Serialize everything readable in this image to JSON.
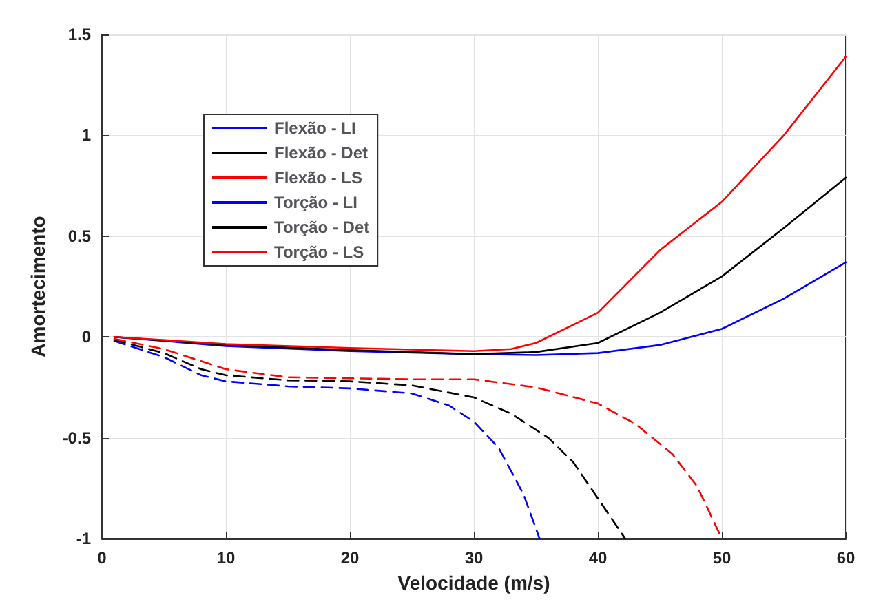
{
  "chart_data": {
    "type": "line",
    "xlabel": "Velocidade (m/s)",
    "ylabel": "Amortecimento",
    "xlim": [
      0,
      60
    ],
    "xticks": [
      0,
      10,
      20,
      30,
      40,
      50,
      60
    ],
    "ylim": [
      -1,
      1.5
    ],
    "yticks": [
      -1,
      -0.5,
      0,
      0.5,
      1,
      1.5
    ],
    "grid": true,
    "legend": "top left",
    "series": [
      {
        "name": "Flexão - LI",
        "color": "#0000ff",
        "line_style": "dashed",
        "x": [
          1,
          5,
          8,
          10,
          15,
          20,
          25,
          28,
          30,
          32,
          34,
          35.3
        ],
        "values": [
          -0.02,
          -0.1,
          -0.19,
          -0.22,
          -0.245,
          -0.255,
          -0.28,
          -0.34,
          -0.42,
          -0.55,
          -0.78,
          -1
        ]
      },
      {
        "name": "Flexão - Det",
        "color": "#000000",
        "line_style": "dashed",
        "x": [
          1,
          5,
          8,
          10,
          15,
          20,
          25,
          30,
          33,
          36,
          38,
          40,
          42.2
        ],
        "values": [
          -0.015,
          -0.08,
          -0.16,
          -0.19,
          -0.215,
          -0.22,
          -0.24,
          -0.3,
          -0.38,
          -0.5,
          -0.62,
          -0.8,
          -1
        ]
      },
      {
        "name": "Flexão - LS",
        "color": "#ff0000",
        "line_style": "dashed",
        "x": [
          1,
          5,
          10,
          15,
          20,
          25,
          30,
          35,
          40,
          43,
          46,
          48,
          50
        ],
        "values": [
          -0.01,
          -0.06,
          -0.16,
          -0.2,
          -0.205,
          -0.21,
          -0.21,
          -0.25,
          -0.33,
          -0.43,
          -0.58,
          -0.74,
          -1
        ]
      },
      {
        "name": "Torção - LI",
        "color": "#0000ff",
        "line_style": "solid",
        "x": [
          1,
          10,
          20,
          30,
          35,
          40,
          45,
          50,
          55,
          60
        ],
        "values": [
          0,
          -0.045,
          -0.07,
          -0.085,
          -0.09,
          -0.08,
          -0.04,
          0.04,
          0.19,
          0.37
        ]
      },
      {
        "name": "Torção - Det",
        "color": "#000000",
        "line_style": "solid",
        "x": [
          1,
          10,
          20,
          30,
          35,
          40,
          45,
          50,
          55,
          60
        ],
        "values": [
          0,
          -0.04,
          -0.065,
          -0.085,
          -0.075,
          -0.03,
          0.12,
          0.3,
          0.54,
          0.79
        ]
      },
      {
        "name": "Torção - LS",
        "color": "#ff0000",
        "line_style": "solid",
        "x": [
          1,
          10,
          20,
          30,
          33,
          35,
          40,
          45,
          50,
          55,
          60
        ],
        "values": [
          0,
          -0.035,
          -0.055,
          -0.07,
          -0.06,
          -0.03,
          0.12,
          0.43,
          0.67,
          1.0,
          1.39
        ]
      }
    ]
  }
}
